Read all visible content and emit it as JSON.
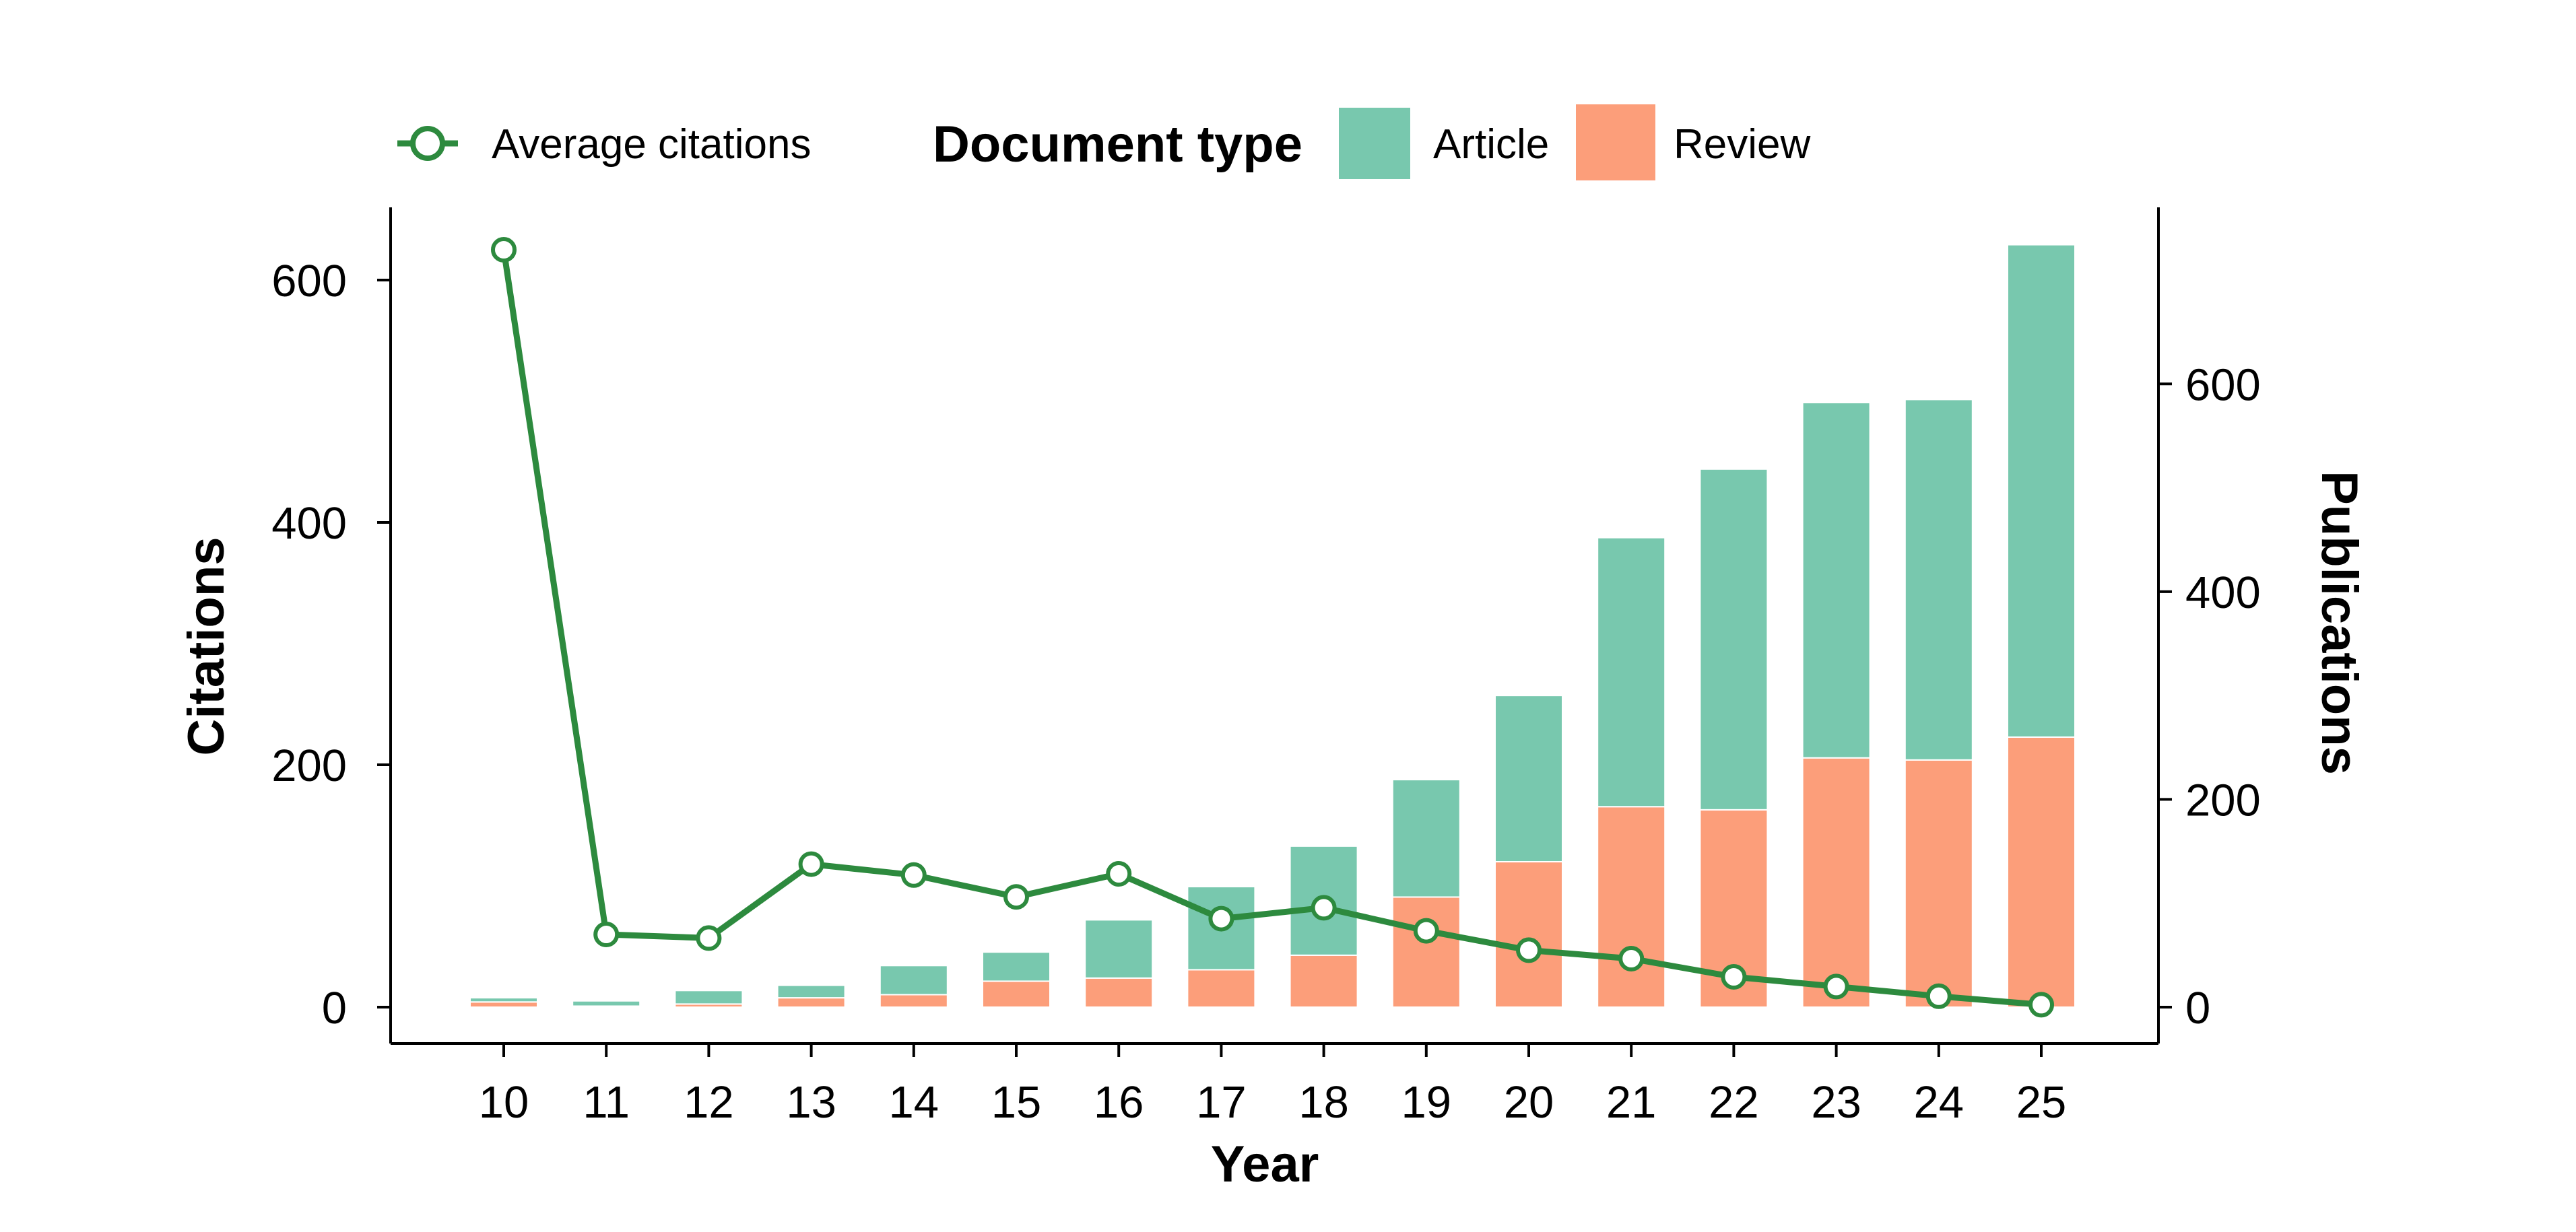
{
  "chart_data": {
    "type": "bar",
    "subtype": "stacked-bar-with-line-dual-axis",
    "categories": [
      "10",
      "11",
      "12",
      "13",
      "14",
      "15",
      "16",
      "17",
      "18",
      "19",
      "20",
      "21",
      "22",
      "23",
      "24",
      "25"
    ],
    "xlabel": "Year",
    "ylabel_left": "Citations",
    "ylabel_right": "Publications",
    "ylim_left": [
      -30,
      660
    ],
    "ylim_right": [
      -35,
      770
    ],
    "yticks_left": [
      0,
      200,
      400,
      600
    ],
    "yticks_right": [
      0,
      200,
      400,
      600
    ],
    "grid": false,
    "legend": {
      "placement": "top",
      "line_entry": "Average citations",
      "title": "Document type",
      "items": [
        "Article",
        "Review"
      ]
    },
    "series": [
      {
        "name": "Review",
        "type": "bar",
        "axis": "right",
        "stack": "document-type",
        "color": "#FC9E7A",
        "values": [
          5,
          1,
          3,
          9,
          12,
          25,
          28,
          36,
          50,
          106,
          140,
          193,
          190,
          240,
          238,
          260
        ]
      },
      {
        "name": "Article",
        "type": "bar",
        "axis": "right",
        "stack": "document-type",
        "color": "#78C8AE",
        "values": [
          4,
          5,
          13,
          12,
          28,
          28,
          56,
          80,
          105,
          113,
          160,
          259,
          328,
          342,
          347,
          474
        ]
      },
      {
        "name": "Average citations",
        "type": "line",
        "axis": "left",
        "color": "#2D8A3E",
        "values": [
          625,
          60,
          57,
          118,
          109,
          91,
          110,
          73,
          82,
          63,
          47,
          40,
          25,
          17,
          9,
          2
        ]
      }
    ]
  }
}
